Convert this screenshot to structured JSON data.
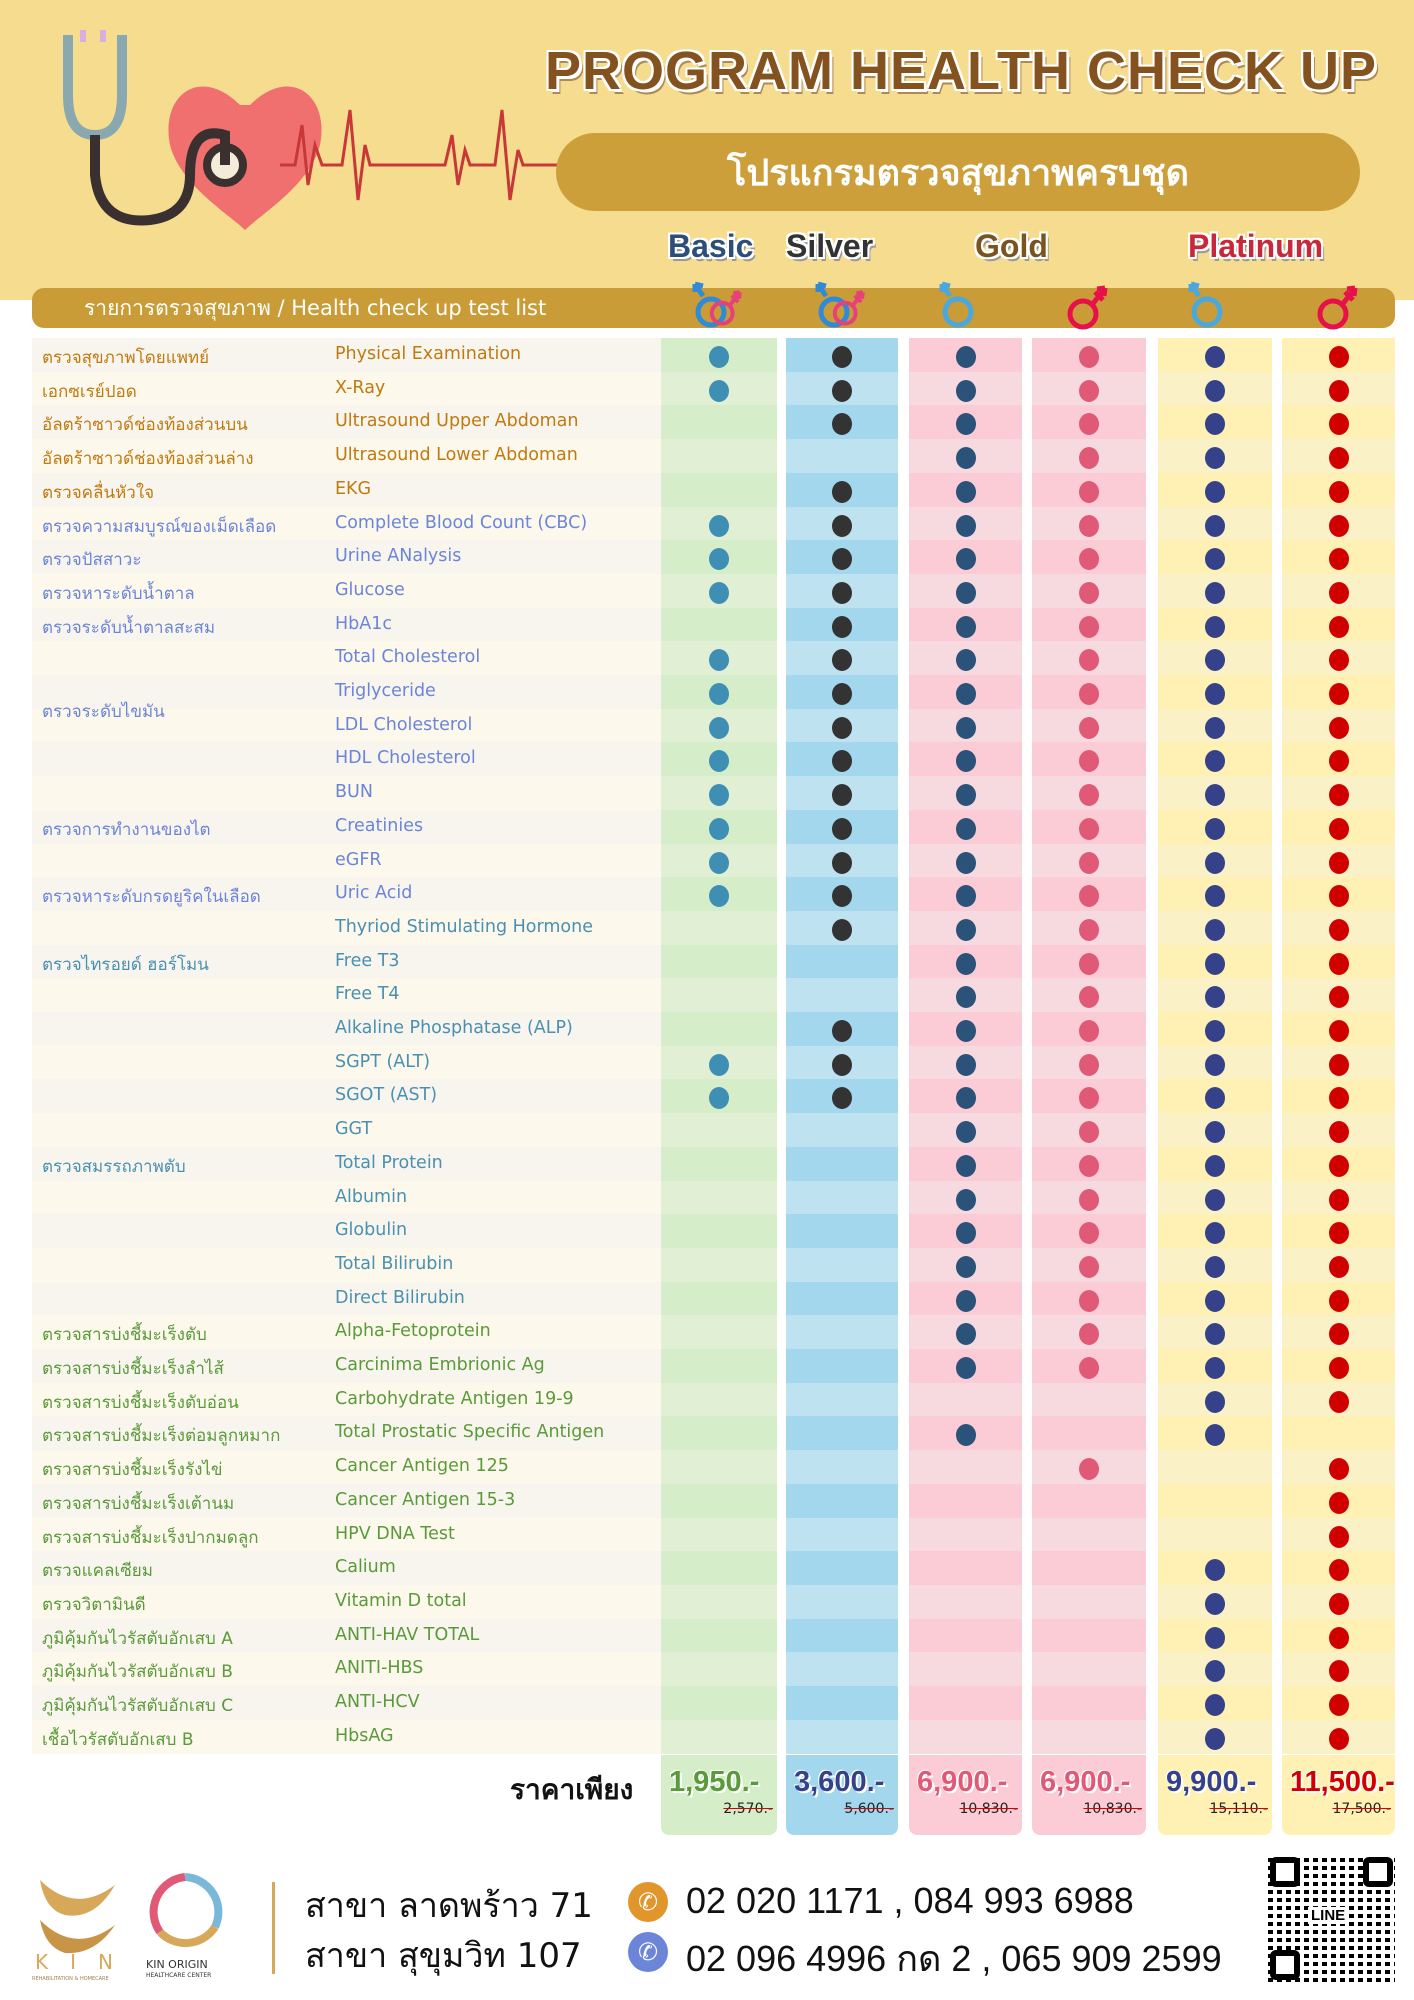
{
  "header": {
    "title": "PROGRAM HEALTH CHECK UP",
    "subtitle": "โปรแกรมตรวจสุขภาพครบชุด",
    "tiers": [
      "Basic",
      "Silver",
      "Gold",
      "Platinum"
    ],
    "list_title": "รายการตรวจสุขภาพ / Health check up test list"
  },
  "columns": [
    {
      "tier": "Basic",
      "gender": "unisex-icon",
      "dot": "#3f8fb5",
      "bg": [
        "#d5edc9",
        "#e1f0d5"
      ]
    },
    {
      "tier": "Silver",
      "gender": "unisex-icon",
      "dot": "#333333",
      "bg": [
        "#a2d7ee",
        "#bee2f0"
      ]
    },
    {
      "tier": "Gold",
      "gender": "male-icon",
      "dot": "#2b5278",
      "bg": [
        "#fbcbd6",
        "#f7dae0"
      ]
    },
    {
      "tier": "Gold",
      "gender": "female-icon",
      "dot": "#e05a78",
      "bg": [
        "#fbcbd6",
        "#f7dae0"
      ]
    },
    {
      "tier": "Platinum",
      "gender": "male-icon",
      "dot": "#35428a",
      "bg": [
        "#fff0b3",
        "#faf2c6"
      ]
    },
    {
      "tier": "Platinum",
      "gender": "female-icon",
      "dot": "#d00000",
      "bg": [
        "#fff0b3",
        "#faf2c6"
      ]
    }
  ],
  "groups": [
    {
      "th": "ตรวจสุขภาพโดยแพทย์",
      "color": "#c07a10",
      "tests": [
        {
          "en": "Physical Examination",
          "dots": [
            1,
            1,
            1,
            1,
            1,
            1
          ]
        }
      ]
    },
    {
      "th": "เอกซเรย์ปอด",
      "color": "#c07a10",
      "tests": [
        {
          "en": "X-Ray",
          "dots": [
            1,
            1,
            1,
            1,
            1,
            1
          ]
        }
      ]
    },
    {
      "th": "อัลตร้าซาวด์ช่องท้องส่วนบน",
      "color": "#c07a10",
      "tests": [
        {
          "en": "Ultrasound Upper Abdoman",
          "dots": [
            0,
            1,
            1,
            1,
            1,
            1
          ]
        }
      ]
    },
    {
      "th": "อัลตร้าซาวด์ช่องท้องส่วนล่าง",
      "color": "#c07a10",
      "tests": [
        {
          "en": "Ultrasound Lower Abdoman",
          "dots": [
            0,
            0,
            1,
            1,
            1,
            1
          ]
        }
      ]
    },
    {
      "th": "ตรวจคลื่นหัวใจ",
      "color": "#c07a10",
      "tests": [
        {
          "en": "EKG",
          "dots": [
            0,
            1,
            1,
            1,
            1,
            1
          ]
        }
      ]
    },
    {
      "th": "ตรวจความสมบูรณ์ของเม็ดเลือด",
      "color": "#6b85d8",
      "tests": [
        {
          "en": "Complete Blood Count (CBC)",
          "dots": [
            1,
            1,
            1,
            1,
            1,
            1
          ]
        }
      ]
    },
    {
      "th": "ตรวจปัสสาวะ",
      "color": "#6b85d8",
      "tests": [
        {
          "en": "Urine ANalysis",
          "dots": [
            1,
            1,
            1,
            1,
            1,
            1
          ]
        }
      ]
    },
    {
      "th": "ตรวจหาระดับน้ำตาล",
      "color": "#6b85d8",
      "tests": [
        {
          "en": "Glucose",
          "dots": [
            1,
            1,
            1,
            1,
            1,
            1
          ]
        }
      ]
    },
    {
      "th": "ตรวจระดับน้ำตาลสะสม",
      "color": "#6b85d8",
      "tests": [
        {
          "en": "HbA1c",
          "dots": [
            0,
            1,
            1,
            1,
            1,
            1
          ]
        }
      ]
    },
    {
      "th": "ตรวจระดับไขมัน",
      "color": "#6b85d8",
      "tests": [
        {
          "en": "Total Cholesterol",
          "dots": [
            1,
            1,
            1,
            1,
            1,
            1
          ]
        },
        {
          "en": "Triglyceride",
          "dots": [
            1,
            1,
            1,
            1,
            1,
            1
          ]
        },
        {
          "en": "LDL Cholesterol",
          "dots": [
            1,
            1,
            1,
            1,
            1,
            1
          ]
        },
        {
          "en": "HDL Cholesterol",
          "dots": [
            1,
            1,
            1,
            1,
            1,
            1
          ]
        }
      ]
    },
    {
      "th": "ตรวจการทำงานของไต",
      "color": "#6b85d8",
      "tests": [
        {
          "en": "BUN",
          "dots": [
            1,
            1,
            1,
            1,
            1,
            1
          ]
        },
        {
          "en": "Creatinies",
          "dots": [
            1,
            1,
            1,
            1,
            1,
            1
          ]
        },
        {
          "en": "eGFR",
          "dots": [
            1,
            1,
            1,
            1,
            1,
            1
          ]
        }
      ]
    },
    {
      "th": "ตรวจหาระดับกรดยูริคในเลือด",
      "color": "#6b85d8",
      "tests": [
        {
          "en": "Uric Acid",
          "dots": [
            1,
            1,
            1,
            1,
            1,
            1
          ]
        }
      ]
    },
    {
      "th": "ตรวจไทรอยด์ ฮอร์โมน",
      "color": "#4a90b0",
      "tests": [
        {
          "en": "Thyriod Stimulating Hormone",
          "dots": [
            0,
            1,
            1,
            1,
            1,
            1
          ]
        },
        {
          "en": "Free T3",
          "dots": [
            0,
            0,
            1,
            1,
            1,
            1
          ]
        },
        {
          "en": "Free T4",
          "dots": [
            0,
            0,
            1,
            1,
            1,
            1
          ]
        }
      ]
    },
    {
      "th": "ตรวจสมรรถภาพตับ",
      "color": "#4a90b0",
      "tests": [
        {
          "en": "Alkaline Phosphatase (ALP)",
          "dots": [
            0,
            1,
            1,
            1,
            1,
            1
          ]
        },
        {
          "en": "SGPT (ALT)",
          "dots": [
            1,
            1,
            1,
            1,
            1,
            1
          ]
        },
        {
          "en": "SGOT (AST)",
          "dots": [
            1,
            1,
            1,
            1,
            1,
            1
          ]
        },
        {
          "en": "GGT",
          "dots": [
            0,
            0,
            1,
            1,
            1,
            1
          ]
        },
        {
          "en": "Total Protein",
          "dots": [
            0,
            0,
            1,
            1,
            1,
            1
          ]
        },
        {
          "en": "Albumin",
          "dots": [
            0,
            0,
            1,
            1,
            1,
            1
          ]
        },
        {
          "en": "Globulin",
          "dots": [
            0,
            0,
            1,
            1,
            1,
            1
          ]
        },
        {
          "en": "Total Bilirubin",
          "dots": [
            0,
            0,
            1,
            1,
            1,
            1
          ]
        },
        {
          "en": "Direct Bilirubin",
          "dots": [
            0,
            0,
            1,
            1,
            1,
            1
          ]
        }
      ]
    },
    {
      "th": "ตรวจสารบ่งชี้มะเร็งตับ",
      "color": "#5a9a3a",
      "tests": [
        {
          "en": "Alpha-Fetoprotein",
          "dots": [
            0,
            0,
            1,
            1,
            1,
            1
          ]
        }
      ]
    },
    {
      "th": "ตรวจสารบ่งชี้มะเร็งลำไส้",
      "color": "#5a9a3a",
      "tests": [
        {
          "en": "Carcinima Embrionic Ag",
          "dots": [
            0,
            0,
            1,
            1,
            1,
            1
          ]
        }
      ]
    },
    {
      "th": "ตรวจสารบ่งชี้มะเร็งตับอ่อน",
      "color": "#5a9a3a",
      "tests": [
        {
          "en": "Carbohydrate Antigen 19-9",
          "dots": [
            0,
            0,
            0,
            0,
            1,
            1
          ]
        }
      ]
    },
    {
      "th": "ตรวจสารบ่งชี้มะเร็งต่อมลูกหมาก",
      "color": "#5a9a3a",
      "tests": [
        {
          "en": "Total Prostatic Specific Antigen",
          "dots": [
            0,
            0,
            1,
            0,
            1,
            0
          ]
        }
      ]
    },
    {
      "th": "ตรวจสารบ่งชี้มะเร็งรังไข่",
      "color": "#5a9a3a",
      "tests": [
        {
          "en": "Cancer Antigen 125",
          "dots": [
            0,
            0,
            0,
            1,
            0,
            1
          ]
        }
      ]
    },
    {
      "th": "ตรวจสารบ่งชี้มะเร็งเต้านม",
      "color": "#5a9a3a",
      "tests": [
        {
          "en": "Cancer Antigen 15-3",
          "dots": [
            0,
            0,
            0,
            0,
            0,
            1
          ]
        }
      ]
    },
    {
      "th": "ตรวจสารบ่งชี้มะเร็งปากมดลูก",
      "color": "#5a9a3a",
      "tests": [
        {
          "en": "HPV DNA Test",
          "dots": [
            0,
            0,
            0,
            0,
            0,
            1
          ]
        }
      ]
    },
    {
      "th": "ตรวจแคลเซียม",
      "color": "#5a9a3a",
      "tests": [
        {
          "en": "Calium",
          "dots": [
            0,
            0,
            0,
            0,
            1,
            1
          ]
        }
      ]
    },
    {
      "th": "ตรวจวิตามินดี",
      "color": "#5a9a3a",
      "tests": [
        {
          "en": "Vitamin D total",
          "dots": [
            0,
            0,
            0,
            0,
            1,
            1
          ]
        }
      ]
    },
    {
      "th": "ภูมิคุ้มกันไวรัสตับอักเสบ A",
      "color": "#5a9a3a",
      "tests": [
        {
          "en": "ANTI-HAV TOTAL",
          "dots": [
            0,
            0,
            0,
            0,
            1,
            1
          ]
        }
      ]
    },
    {
      "th": "ภูมิคุ้มกันไวรัสตับอักเสบ B",
      "color": "#5a9a3a",
      "tests": [
        {
          "en": "ANITI-HBS",
          "dots": [
            0,
            0,
            0,
            0,
            1,
            1
          ]
        }
      ]
    },
    {
      "th": "ภูมิคุ้มกันไวรัสตับอักเสบ C",
      "color": "#5a9a3a",
      "tests": [
        {
          "en": "ANTI-HCV",
          "dots": [
            0,
            0,
            0,
            0,
            1,
            1
          ]
        }
      ]
    },
    {
      "th": "เชื้อไวรัสตับอักเสบ B",
      "color": "#5a9a3a",
      "tests": [
        {
          "en": "HbsAG",
          "dots": [
            0,
            0,
            0,
            0,
            1,
            1
          ]
        }
      ]
    }
  ],
  "pricing": {
    "label": "ราคาเพียง",
    "prices": [
      {
        "now": "1,950.-",
        "was": "2,570.-",
        "color": "#5a9a3a"
      },
      {
        "now": "3,600.-",
        "was": "5,600.-",
        "color": "#35428a"
      },
      {
        "now": "6,900.-",
        "was": "10,830.-",
        "color": "#e05a78"
      },
      {
        "now": "6,900.-",
        "was": "10,830.-",
        "color": "#e05a78"
      },
      {
        "now": "9,900.-",
        "was": "15,110.-",
        "color": "#35428a"
      },
      {
        "now": "11,500.-",
        "was": "17,500.-",
        "color": "#d00000"
      }
    ]
  },
  "footer": {
    "logo1": "KIN",
    "logo1_sub": "REHABILITATION & HOMECARE",
    "logo2": "KIN ORIGIN",
    "logo2_sub": "HEALTHCARE CENTER",
    "branches": [
      {
        "name": "สาขา ลาดพร้าว 71",
        "phone": "02 020 1171 , 084 993 6988",
        "icon_color": "#e0962a"
      },
      {
        "name": "สาขา สุขุมวิท 107",
        "phone": "02 096 4996 กด 2 , 065 909 2599",
        "icon_color": "#6b85d8"
      }
    ],
    "qr_label": "LINE"
  }
}
